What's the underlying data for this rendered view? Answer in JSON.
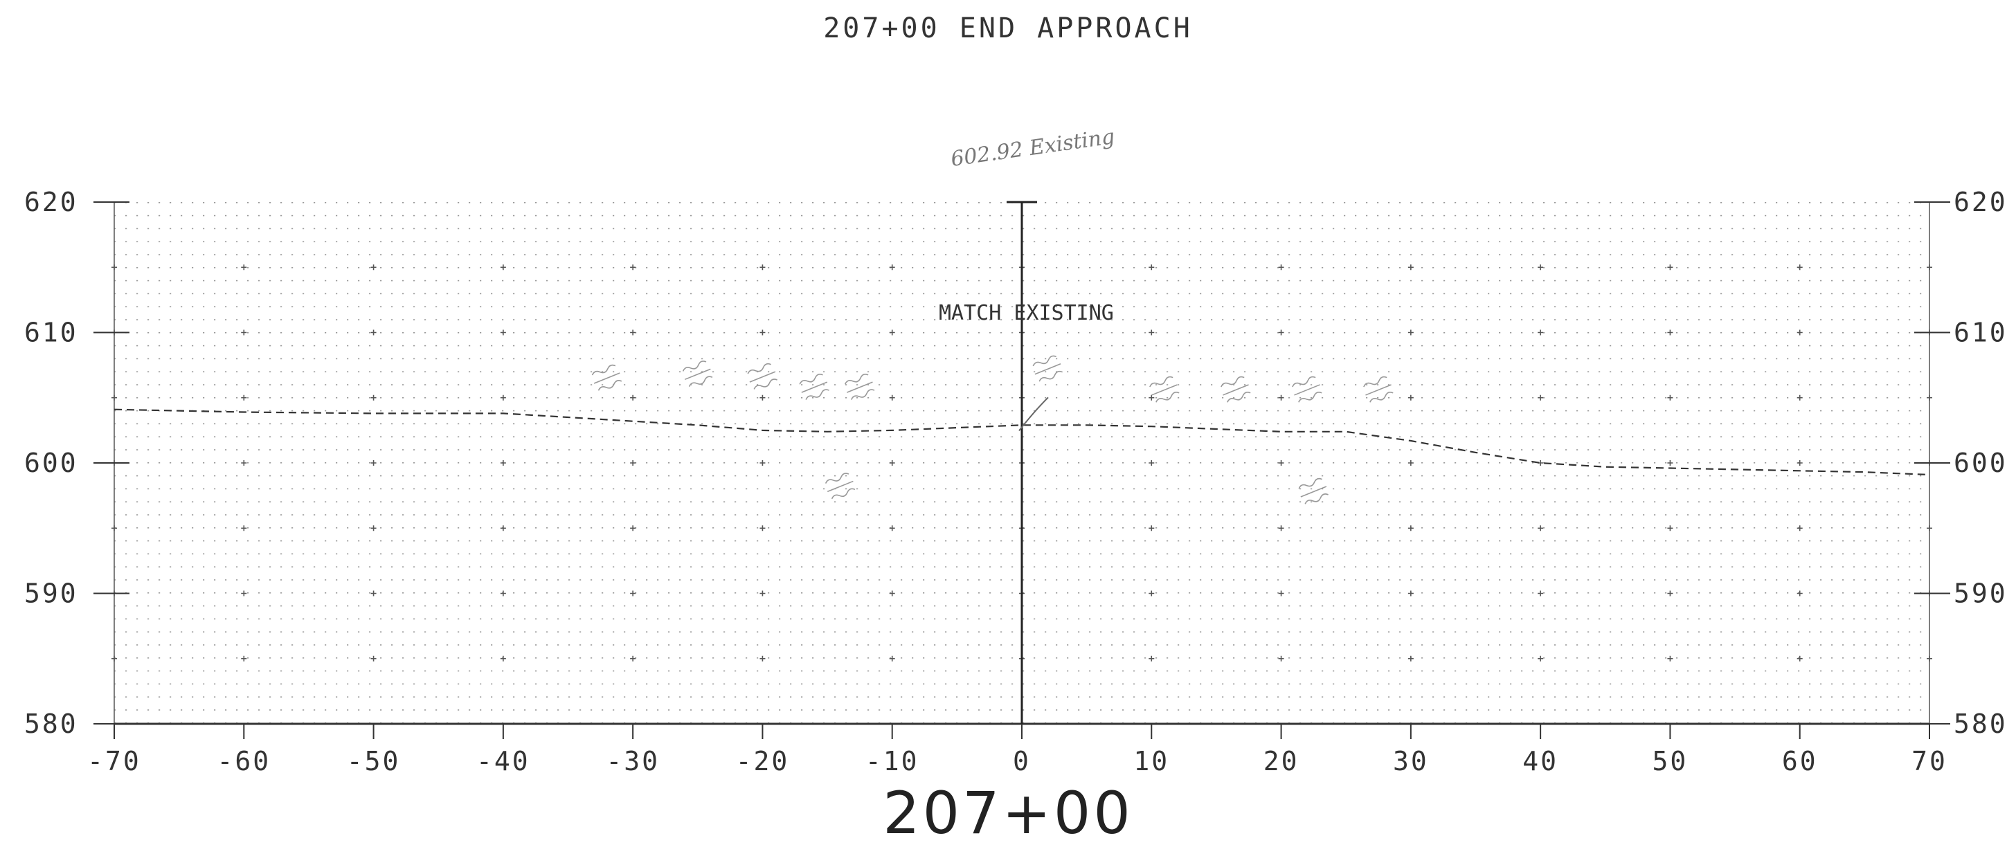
{
  "drawing": {
    "title": "207+00 END APPROACH",
    "station_label": "207+00",
    "match_note": "MATCH EXISTING",
    "handwritten_note": "602.92 Existing"
  },
  "chart_data": {
    "type": "line",
    "title": "207+00 END APPROACH",
    "xlabel": "207+00",
    "ylabel": "",
    "xlim": [
      -70,
      70
    ],
    "ylim": [
      580,
      620
    ],
    "x_ticks": [
      -70,
      -60,
      -50,
      -40,
      -30,
      -20,
      -10,
      0,
      10,
      20,
      30,
      40,
      50,
      60,
      70
    ],
    "y_ticks": [
      580,
      590,
      600,
      610,
      620
    ],
    "grid": true,
    "series": [
      {
        "style": "dashed",
        "x": [
          -70,
          -60,
          -50,
          -40,
          -35,
          -30,
          -25,
          -20,
          -15,
          -10,
          -5,
          0,
          5,
          10,
          15,
          20,
          25,
          30,
          35,
          40,
          45,
          50,
          55,
          60,
          65,
          70
        ],
        "y": [
          604.1,
          603.9,
          603.8,
          603.8,
          603.5,
          603.2,
          602.9,
          602.5,
          602.4,
          602.5,
          602.7,
          602.9,
          602.9,
          602.8,
          602.6,
          602.4,
          602.4,
          601.7,
          600.8,
          600.0,
          599.7,
          599.6,
          599.5,
          599.4,
          599.3,
          599.1
        ]
      }
    ]
  }
}
